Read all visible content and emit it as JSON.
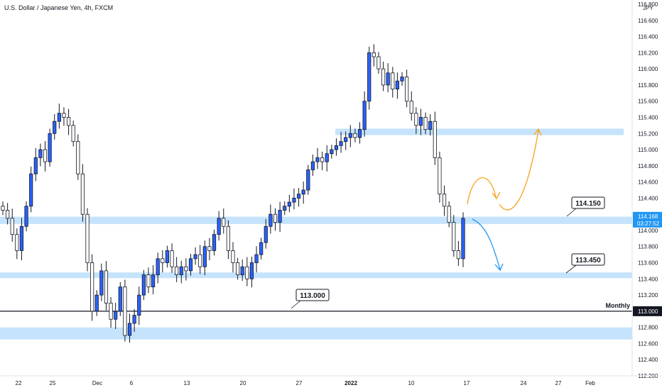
{
  "chart_data": {
    "type": "candlestick",
    "title": "U.S. Dollar / Japanese Yen, 4h, FXCM",
    "currency": "JPY",
    "ylim": [
      112.2,
      116.8
    ],
    "y_ticks": [
      "116.800",
      "116.600",
      "116.400",
      "116.200",
      "116.000",
      "115.800",
      "115.600",
      "115.400",
      "115.200",
      "115.000",
      "114.800",
      "114.600",
      "114.400",
      "114.200",
      "114.000",
      "113.800",
      "113.600",
      "113.400",
      "113.200",
      "113.000",
      "112.800",
      "112.600",
      "112.400",
      "112.200"
    ],
    "x_ticks": [
      "22",
      "25",
      "Dec",
      "6",
      "13",
      "20",
      "27",
      "2022",
      "10",
      "17",
      "24",
      "27",
      "Feb"
    ],
    "series": [
      {
        "values": [
          114.25,
          114.15,
          113.95,
          113.75,
          114.05,
          114.3,
          114.7,
          114.9,
          115.0,
          114.85,
          115.2,
          115.35,
          115.45,
          115.4,
          115.3,
          115.1,
          114.7,
          114.2,
          113.6,
          113.0,
          113.2,
          113.5,
          113.1,
          112.9,
          113.0,
          113.3,
          112.7,
          112.85,
          112.95,
          113.2,
          113.45,
          113.3,
          113.45,
          113.65,
          113.6,
          113.75,
          113.55,
          113.45,
          113.55,
          113.5,
          113.65,
          113.7,
          113.55,
          113.8,
          113.75,
          113.95,
          114.15,
          114.05,
          113.75,
          113.6,
          113.45,
          113.55,
          113.4,
          113.6,
          113.7,
          113.85,
          114.05,
          114.2,
          114.1,
          114.25,
          114.3,
          114.35,
          114.4,
          114.45,
          114.5,
          114.75,
          114.85,
          114.9,
          114.85,
          114.95,
          115.0,
          115.05,
          115.1,
          115.15,
          115.2,
          115.15,
          115.25,
          115.6,
          116.2,
          116.15,
          116.0,
          115.8,
          115.95,
          115.75,
          115.85,
          115.9,
          115.6,
          115.45,
          115.3,
          115.4,
          115.25,
          115.35,
          114.9,
          114.45,
          114.3,
          114.1,
          113.75,
          113.65,
          114.15
        ]
      }
    ],
    "zones": [
      {
        "low": 115.18,
        "high": 115.26
      },
      {
        "low": 114.08,
        "high": 114.17
      },
      {
        "low": 113.41,
        "high": 113.48
      },
      {
        "low": 112.65,
        "high": 112.8
      }
    ],
    "line_113": 113.0,
    "annotations": [
      {
        "text": "114.150"
      },
      {
        "text": "113.450"
      },
      {
        "text": "113.000"
      },
      {
        "text": "Monthly"
      }
    ],
    "current_price": "114.168",
    "countdown": "03:27:52",
    "line_label": "113.000",
    "colors": {
      "up": "#2962ff",
      "down": "#ffffff",
      "wick": "#131722",
      "zone": "#bbdefb",
      "orange": "#f7a21b",
      "blue": "#2196f3",
      "badge": "#2196f3"
    }
  }
}
